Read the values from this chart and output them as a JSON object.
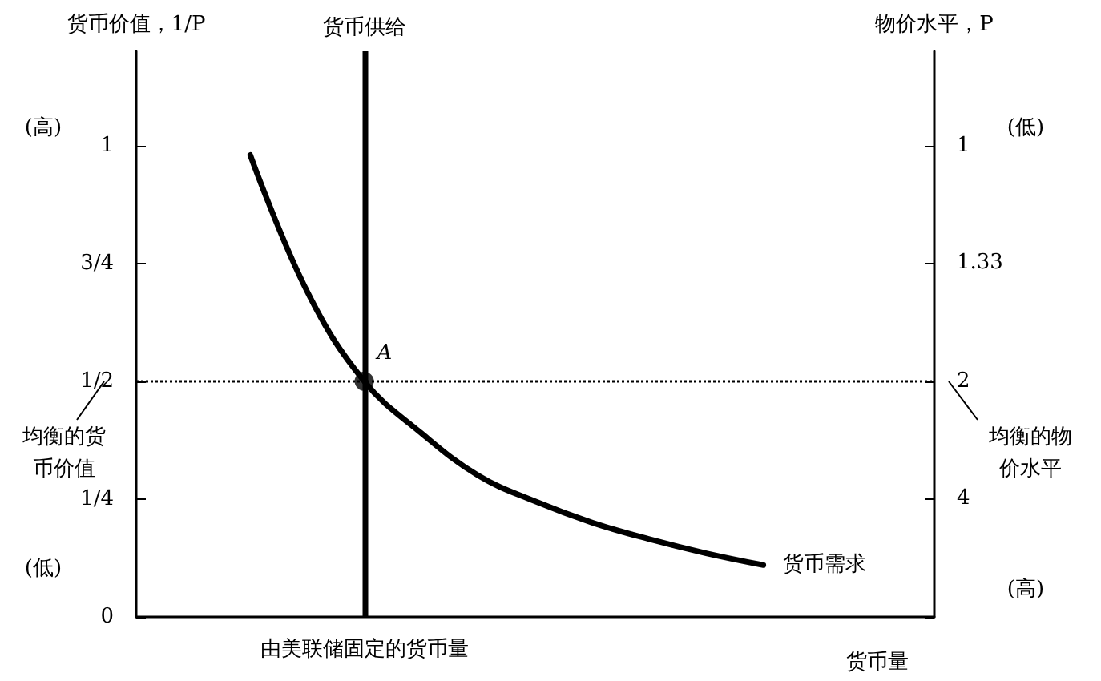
{
  "chart_data": {
    "type": "line",
    "ylabel": "货币价值，1/P",
    "y2label": "物价水平，P",
    "xlabel": "货币量",
    "categories": [
      null,
      null,
      null,
      null,
      "由美联储固定的货币量",
      null,
      null,
      null,
      null,
      null,
      null,
      null,
      null,
      null,
      null
    ],
    "ylim": [
      0,
      1.2
    ],
    "yticks": [
      0,
      {
        "value": 0.25,
        "label": "1/4"
      },
      {
        "value": 0.5,
        "label": "1/2"
      },
      {
        "value": 0.75,
        "label": "3/4"
      },
      1
    ],
    "series": [
      {
        "name": "货币需求",
        "color": "#000000",
        "values": [
          null,
          null,
          0.98,
          0.69,
          0.5,
          0.39,
          0.3,
          0.245,
          0.2,
          0.165,
          0.135,
          0.11,
          null,
          null,
          null
        ]
      },
      {
        "type": "scatter",
        "color": "#000000",
        "marker": "circle",
        "x": [
          "由美联储固定的货币量"
        ],
        "values": [
          0.5
        ]
      }
    ],
    "ref_lines": [
      {
        "axis": "x",
        "value": "由美联储固定的货币量",
        "label": "货币供给",
        "color": "#000000",
        "line_style": "solid"
      },
      {
        "axis": "y",
        "value": 0.5,
        "line_style": "dotted",
        "color": "#000000"
      }
    ],
    "annotations": [
      {
        "text": "A",
        "x": "由美联储固定的货币量",
        "y": 0.5
      },
      "(高)",
      "(低)",
      "(低)",
      "(高)",
      "均衡的货币价值",
      "均衡的物价水平",
      "1",
      "1.33",
      "2",
      "4"
    ],
    "grid": false,
    "legend": false
  }
}
